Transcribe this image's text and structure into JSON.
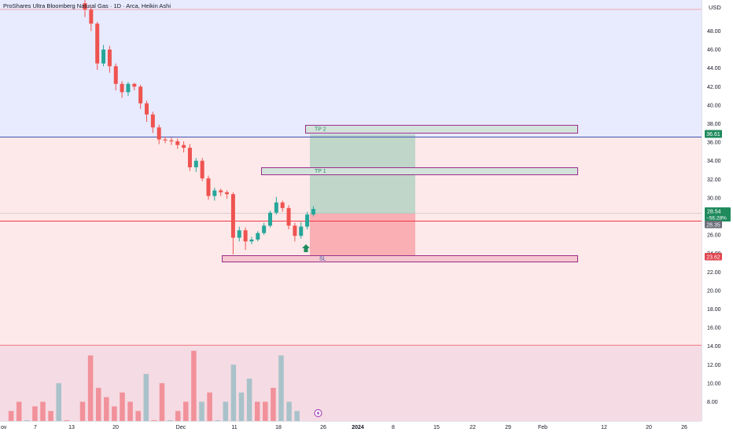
{
  "header": {
    "symbol_title": "ProShares Ultra Bloomberg Natural Gas · 1D · Arca, Heikin Ashi"
  },
  "price_axis": {
    "currency": "USD",
    "ticks": [
      "48.00",
      "46.00",
      "44.00",
      "42.00",
      "40.00",
      "38.00",
      "36.00",
      "34.00",
      "32.00",
      "30.00",
      "28.00",
      "26.00",
      "24.00",
      "22.00",
      "20.00",
      "18.00",
      "16.00",
      "14.00",
      "12.00",
      "10.00",
      "8.00"
    ],
    "tags": {
      "tp2_level": "36.61",
      "last_price": "28.54",
      "last_change": "−56.28%",
      "entry_level": "28.35",
      "sl_level": "23.62"
    }
  },
  "time_axis": {
    "labels": [
      "ov",
      "7",
      "13",
      "20",
      "Dec",
      "11",
      "18",
      "26",
      "2024",
      "8",
      "15",
      "22",
      "29",
      "Feb",
      "12",
      "20",
      "26"
    ]
  },
  "drawings": {
    "tp2_label": "TP 2",
    "tp1_label": "TP 1",
    "sl_label": "SL"
  },
  "colors": {
    "bull": "#26a69a",
    "bear": "#ef5350",
    "tp2_line": "#3f51b5",
    "entry_line": "#f23645",
    "badge_green": "#1f8a5c",
    "badge_red": "#e0454f",
    "badge_gray": "#6a6d78",
    "target_zone": "#b4d2c3",
    "stop_zone": "#f8a4aa"
  },
  "chart_data": {
    "type": "candlestick",
    "title": "ProShares Ultra Bloomberg Natural Gas · 1D · Arca, Heikin Ashi",
    "ylabel": "USD",
    "ylim": [
      5.8,
      51.2
    ],
    "x_ticks": [
      "7",
      "13",
      "20",
      "Dec",
      "11",
      "18",
      "26",
      "2024",
      "8",
      "15",
      "22",
      "29",
      "Feb",
      "12",
      "20",
      "26"
    ],
    "candles": [
      {
        "o": 51.0,
        "c": 50.3,
        "h": 51.5,
        "l": 49.5
      },
      {
        "o": 50.3,
        "c": 48.8,
        "h": 50.6,
        "l": 48.0
      },
      {
        "o": 48.8,
        "c": 44.5,
        "h": 49.0,
        "l": 43.8
      },
      {
        "o": 44.5,
        "c": 46.0,
        "h": 46.5,
        "l": 44.2
      },
      {
        "o": 46.0,
        "c": 44.2,
        "h": 46.4,
        "l": 43.5
      },
      {
        "o": 44.2,
        "c": 42.3,
        "h": 44.5,
        "l": 41.6
      },
      {
        "o": 42.3,
        "c": 41.4,
        "h": 42.6,
        "l": 40.8
      },
      {
        "o": 41.4,
        "c": 42.3,
        "h": 42.5,
        "l": 41.0
      },
      {
        "o": 42.3,
        "c": 42.0,
        "h": 42.4,
        "l": 41.6
      },
      {
        "o": 42.0,
        "c": 40.2,
        "h": 42.2,
        "l": 39.6
      },
      {
        "o": 40.2,
        "c": 39.0,
        "h": 40.5,
        "l": 38.2
      },
      {
        "o": 39.0,
        "c": 37.6,
        "h": 39.3,
        "l": 37.0
      },
      {
        "o": 37.6,
        "c": 36.3,
        "h": 37.9,
        "l": 35.8
      },
      {
        "o": 36.3,
        "c": 36.2,
        "h": 36.6,
        "l": 35.9
      },
      {
        "o": 36.2,
        "c": 36.1,
        "h": 36.5,
        "l": 35.7
      },
      {
        "o": 36.1,
        "c": 35.7,
        "h": 36.4,
        "l": 35.3
      },
      {
        "o": 35.7,
        "c": 35.4,
        "h": 36.1,
        "l": 34.9
      },
      {
        "o": 35.4,
        "c": 33.3,
        "h": 35.8,
        "l": 32.9
      },
      {
        "o": 33.3,
        "c": 34.0,
        "h": 34.3,
        "l": 32.8
      },
      {
        "o": 34.0,
        "c": 32.1,
        "h": 34.3,
        "l": 31.8
      },
      {
        "o": 32.1,
        "c": 30.2,
        "h": 32.4,
        "l": 29.8
      },
      {
        "o": 30.2,
        "c": 30.8,
        "h": 31.1,
        "l": 29.7
      },
      {
        "o": 30.8,
        "c": 30.6,
        "h": 31.0,
        "l": 30.2
      },
      {
        "o": 30.6,
        "c": 30.4,
        "h": 30.8,
        "l": 29.9
      },
      {
        "o": 30.4,
        "c": 25.7,
        "h": 30.6,
        "l": 23.9
      },
      {
        "o": 25.7,
        "c": 26.5,
        "h": 26.9,
        "l": 25.3
      },
      {
        "o": 26.5,
        "c": 25.3,
        "h": 26.8,
        "l": 24.4
      },
      {
        "o": 25.3,
        "c": 25.5,
        "h": 25.8,
        "l": 25.0
      },
      {
        "o": 25.5,
        "c": 26.2,
        "h": 26.4,
        "l": 25.3
      },
      {
        "o": 26.2,
        "c": 27.0,
        "h": 27.3,
        "l": 26.0
      },
      {
        "o": 27.0,
        "c": 28.4,
        "h": 28.6,
        "l": 26.8
      },
      {
        "o": 28.4,
        "c": 29.5,
        "h": 30.1,
        "l": 28.2
      },
      {
        "o": 29.5,
        "c": 28.9,
        "h": 29.7,
        "l": 28.5
      },
      {
        "o": 28.9,
        "c": 27.0,
        "h": 29.2,
        "l": 26.6
      },
      {
        "o": 27.0,
        "c": 25.9,
        "h": 27.3,
        "l": 25.3
      },
      {
        "o": 25.9,
        "c": 26.9,
        "h": 27.4,
        "l": 25.6
      },
      {
        "o": 26.9,
        "c": 28.2,
        "h": 28.5,
        "l": 26.6
      },
      {
        "o": 28.2,
        "c": 28.8,
        "h": 29.1,
        "l": 28.0
      }
    ],
    "volume": [
      5,
      7,
      8,
      6,
      7.5,
      8,
      7,
      10,
      6,
      5,
      8,
      13,
      9.5,
      8.5,
      7.5,
      9,
      8,
      7,
      11,
      6,
      10,
      6,
      7,
      8,
      13.5,
      8,
      9,
      6,
      8,
      12,
      9,
      10.5,
      8,
      8,
      9.5,
      13,
      8,
      7
    ],
    "levels": {
      "tp2": 36.61,
      "tp1": 32.9,
      "entry": 28.35,
      "sl": 23.62
    },
    "last_price": 28.54,
    "change_pct": "−56.28%"
  }
}
